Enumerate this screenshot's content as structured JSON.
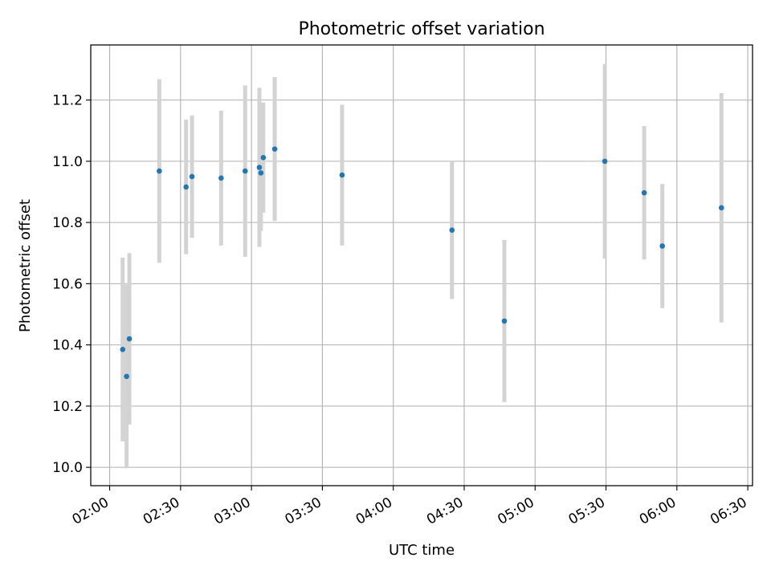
{
  "chart_data": {
    "type": "scatter",
    "title": "Photometric offset variation",
    "xlabel": "UTC time",
    "ylabel": "Photometric offset",
    "xlim": [
      "01:52",
      "06:32"
    ],
    "ylim": [
      9.94,
      11.38
    ],
    "grid": true,
    "x_ticks": [
      "02:00",
      "02:30",
      "03:00",
      "03:30",
      "04:00",
      "04:30",
      "05:00",
      "05:30",
      "06:00",
      "06:30"
    ],
    "y_ticks": [
      10.0,
      10.2,
      10.4,
      10.6,
      10.8,
      11.0,
      11.2
    ],
    "y_tick_labels": [
      "10.0",
      "10.2",
      "10.4",
      "10.6",
      "10.8",
      "11.0",
      "11.2"
    ],
    "series": [
      {
        "marker_color": "#1f77b4",
        "errorbar_color": "#d3d3d3",
        "points": [
          {
            "x": "02:05:30",
            "y": 10.385,
            "err": 0.3
          },
          {
            "x": "02:07:10",
            "y": 10.297,
            "err": 0.3
          },
          {
            "x": "02:08:20",
            "y": 10.42,
            "err": 0.28
          },
          {
            "x": "02:21:00",
            "y": 10.968,
            "err": 0.3
          },
          {
            "x": "02:32:20",
            "y": 10.916,
            "err": 0.22
          },
          {
            "x": "02:34:50",
            "y": 10.95,
            "err": 0.2
          },
          {
            "x": "02:47:10",
            "y": 10.945,
            "err": 0.22
          },
          {
            "x": "02:57:20",
            "y": 10.968,
            "err": 0.28
          },
          {
            "x": "03:03:20",
            "y": 10.98,
            "err": 0.26
          },
          {
            "x": "03:04:00",
            "y": 10.962,
            "err": 0.19
          },
          {
            "x": "03:05:00",
            "y": 11.012,
            "err": 0.18
          },
          {
            "x": "03:09:50",
            "y": 11.04,
            "err": 0.235
          },
          {
            "x": "03:38:20",
            "y": 10.955,
            "err": 0.23
          },
          {
            "x": "04:24:50",
            "y": 10.775,
            "err": 0.225
          },
          {
            "x": "04:47:00",
            "y": 10.478,
            "err": 0.265
          },
          {
            "x": "05:29:30",
            "y": 11.0,
            "err": 0.318
          },
          {
            "x": "05:46:10",
            "y": 10.897,
            "err": 0.218
          },
          {
            "x": "05:53:50",
            "y": 10.723,
            "err": 0.203
          },
          {
            "x": "06:18:50",
            "y": 10.848,
            "err": 0.375
          }
        ]
      }
    ]
  }
}
